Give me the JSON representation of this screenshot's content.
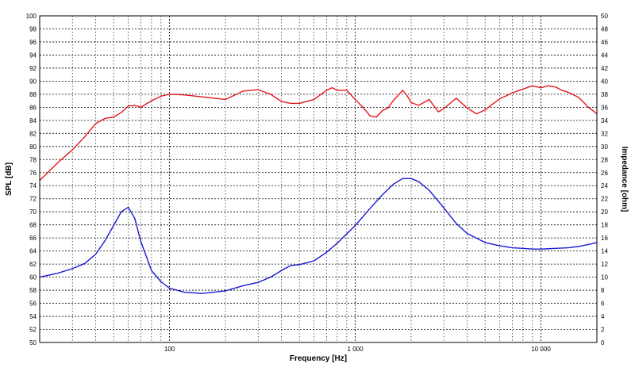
{
  "chart_data": {
    "type": "line",
    "title": "",
    "xlabel": "Frequency [Hz]",
    "ylabel": "SPL [dB]",
    "y2label": "Impedance [ohm]",
    "xscale": "log",
    "xlim": [
      20,
      20000
    ],
    "ylim": [
      50,
      100
    ],
    "y2lim": [
      0,
      50
    ],
    "x_tick_labels": [
      {
        "value": 100,
        "label": "100"
      },
      {
        "value": 1000,
        "label": "1 000"
      },
      {
        "value": 10000,
        "label": "10 000"
      }
    ],
    "y_ticks": [
      50,
      52,
      54,
      56,
      58,
      60,
      62,
      64,
      66,
      68,
      70,
      72,
      74,
      76,
      78,
      80,
      82,
      84,
      86,
      88,
      90,
      92,
      94,
      96,
      98,
      100
    ],
    "y2_ticks": [
      0,
      2,
      4,
      6,
      8,
      10,
      12,
      14,
      16,
      18,
      20,
      22,
      24,
      26,
      28,
      30,
      32,
      34,
      36,
      38,
      40,
      42,
      44,
      46,
      48,
      50
    ],
    "grid": true,
    "series": [
      {
        "color": "#e8161b",
        "axis": "left",
        "x": [
          20,
          25,
          30,
          35,
          40,
          45,
          50,
          55,
          60,
          65,
          70,
          80,
          90,
          100,
          120,
          150,
          200,
          250,
          300,
          350,
          400,
          450,
          500,
          600,
          700,
          750,
          800,
          900,
          1000,
          1100,
          1200,
          1300,
          1400,
          1500,
          1600,
          1800,
          1900,
          2000,
          2200,
          2500,
          2800,
          3000,
          3500,
          4000,
          4500,
          5000,
          5500,
          6000,
          7000,
          8000,
          9000,
          10000,
          11000,
          12000,
          13000,
          14000,
          16000,
          18000,
          20000
        ],
        "y": [
          74.8,
          77.5,
          79.5,
          81.5,
          83.5,
          84.3,
          84.5,
          85.2,
          86.2,
          86.3,
          86.0,
          87.0,
          87.7,
          88.0,
          87.9,
          87.6,
          87.2,
          88.5,
          88.7,
          88.0,
          86.9,
          86.6,
          86.6,
          87.2,
          88.6,
          89.0,
          88.6,
          88.6,
          87.2,
          86.0,
          84.7,
          84.5,
          85.5,
          85.9,
          87.0,
          88.6,
          87.8,
          86.7,
          86.3,
          87.2,
          85.3,
          85.8,
          87.4,
          85.9,
          85.0,
          85.6,
          86.5,
          87.3,
          88.2,
          88.8,
          89.3,
          89.0,
          89.3,
          89.1,
          88.6,
          88.3,
          87.5,
          86.0,
          85.0
        ]
      },
      {
        "color": "#1a1ad4",
        "axis": "right",
        "x": [
          20,
          25,
          30,
          35,
          40,
          45,
          50,
          55,
          60,
          65,
          70,
          80,
          90,
          100,
          120,
          150,
          200,
          250,
          300,
          350,
          400,
          450,
          500,
          600,
          700,
          800,
          1000,
          1200,
          1400,
          1600,
          1800,
          2000,
          2200,
          2500,
          3000,
          3500,
          4000,
          5000,
          6000,
          7000,
          8000,
          9000,
          10000,
          11000,
          12000,
          14000,
          16000,
          18000,
          20000
        ],
        "y": [
          10.0,
          10.6,
          11.3,
          12.1,
          13.5,
          15.6,
          17.9,
          20.0,
          20.7,
          19.0,
          15.5,
          11.0,
          9.3,
          8.3,
          7.7,
          7.5,
          7.9,
          8.7,
          9.2,
          10.0,
          11.0,
          11.8,
          11.9,
          12.5,
          13.8,
          15.2,
          17.9,
          20.5,
          22.6,
          24.2,
          25.1,
          25.1,
          24.6,
          23.3,
          20.6,
          18.2,
          16.7,
          15.3,
          14.8,
          14.5,
          14.4,
          14.3,
          14.3,
          14.35,
          14.4,
          14.5,
          14.7,
          15.0,
          15.3
        ]
      }
    ]
  }
}
